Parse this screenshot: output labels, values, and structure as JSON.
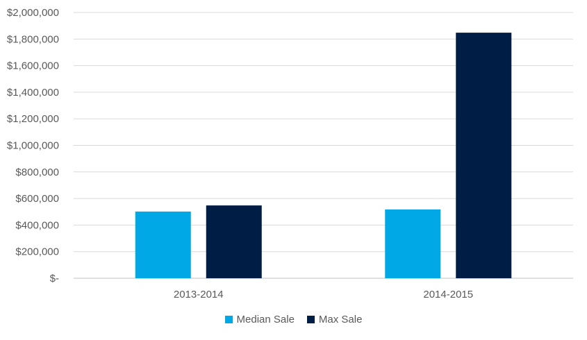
{
  "chart_data": {
    "type": "bar",
    "categories": [
      "2013-2014",
      "2014-2015"
    ],
    "series": [
      {
        "name": "Median Sale",
        "color": "#00A9E6",
        "values": [
          502000,
          518000
        ]
      },
      {
        "name": "Max Sale",
        "color": "#001E45",
        "values": [
          548000,
          1848000
        ]
      }
    ],
    "ylim": [
      0,
      2000000
    ],
    "yticks": [
      0,
      200000,
      400000,
      600000,
      800000,
      1000000,
      1200000,
      1400000,
      1600000,
      1800000,
      2000000
    ],
    "ytick_labels": [
      "$-",
      "$200,000",
      "$400,000",
      "$600,000",
      "$800,000",
      "$1,000,000",
      "$1,200,000",
      "$1,400,000",
      "$1,600,000",
      "$1,800,000",
      "$2,000,000"
    ],
    "grid": true,
    "legend_position": "bottom",
    "title": "",
    "xlabel": "",
    "ylabel": ""
  }
}
